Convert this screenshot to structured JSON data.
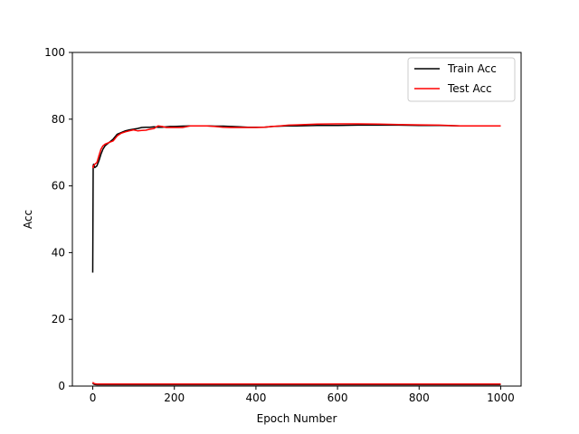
{
  "chart_data": {
    "type": "line",
    "title": "",
    "xlabel": "Epoch Number",
    "ylabel": "Acc",
    "xlim": [
      -50,
      1050
    ],
    "ylim": [
      0,
      100
    ],
    "xticks": [
      0,
      200,
      400,
      600,
      800,
      1000
    ],
    "yticks": [
      0,
      20,
      40,
      60,
      80,
      100
    ],
    "grid": false,
    "legend_position": "upper-right",
    "series": [
      {
        "name": "Train Acc",
        "color": "#000000",
        "x": [
          0,
          1,
          2,
          5,
          10,
          15,
          20,
          25,
          30,
          40,
          50,
          60,
          70,
          80,
          90,
          100,
          110,
          120,
          130,
          140,
          150,
          160,
          170,
          180,
          190,
          200,
          220,
          240,
          260,
          280,
          300,
          320,
          340,
          360,
          380,
          400,
          420,
          440,
          460,
          480,
          500,
          550,
          600,
          650,
          700,
          750,
          800,
          850,
          900,
          950,
          1000
        ],
        "y": [
          34,
          66,
          66.5,
          65.5,
          66,
          67.5,
          69.5,
          71,
          72,
          73,
          74,
          75.5,
          76,
          76.5,
          76.8,
          77,
          77.2,
          77.5,
          77.6,
          77.6,
          77.7,
          77.6,
          77.6,
          77.7,
          77.8,
          77.8,
          77.9,
          78,
          78,
          78,
          77.9,
          77.9,
          77.8,
          77.7,
          77.6,
          77.6,
          77.6,
          77.8,
          77.9,
          78,
          78,
          78.1,
          78.1,
          78.2,
          78.2,
          78.2,
          78.1,
          78.1,
          78,
          78,
          78
        ]
      },
      {
        "name": "Test Acc",
        "color": "#ff0000",
        "x": [
          0,
          1,
          2,
          5,
          10,
          15,
          20,
          25,
          30,
          40,
          50,
          60,
          70,
          80,
          90,
          100,
          110,
          120,
          130,
          140,
          150,
          160,
          170,
          180,
          190,
          200,
          220,
          240,
          260,
          280,
          300,
          320,
          340,
          360,
          380,
          400,
          420,
          440,
          460,
          480,
          500,
          550,
          600,
          650,
          700,
          750,
          800,
          850,
          900,
          950,
          1000
        ],
        "y": [
          66,
          65.5,
          66,
          66.5,
          67,
          69,
          71,
          72,
          72.5,
          73,
          73.5,
          75,
          75.8,
          76.2,
          76.5,
          76.8,
          76.5,
          76.6,
          76.7,
          77,
          77.2,
          78,
          77.8,
          77.5,
          77.5,
          77.5,
          77.5,
          78,
          78,
          78,
          77.8,
          77.6,
          77.5,
          77.5,
          77.5,
          77.5,
          77.6,
          77.8,
          78,
          78.2,
          78.3,
          78.5,
          78.6,
          78.6,
          78.5,
          78.4,
          78.3,
          78.2,
          78,
          78,
          78
        ]
      },
      {
        "name": "",
        "color": "#000000",
        "x": [
          0,
          2,
          5,
          10,
          50,
          100,
          200,
          400,
          600,
          800,
          1000
        ],
        "y": [
          0.9,
          0.6,
          0.5,
          0.4,
          0.4,
          0.4,
          0.4,
          0.4,
          0.4,
          0.4,
          0.4
        ]
      },
      {
        "name": "",
        "color": "#ff0000",
        "x": [
          0,
          2,
          5,
          10,
          50,
          100,
          200,
          400,
          600,
          800,
          1000
        ],
        "y": [
          1.2,
          0.8,
          0.7,
          0.6,
          0.6,
          0.6,
          0.6,
          0.6,
          0.6,
          0.6,
          0.6
        ]
      }
    ]
  }
}
